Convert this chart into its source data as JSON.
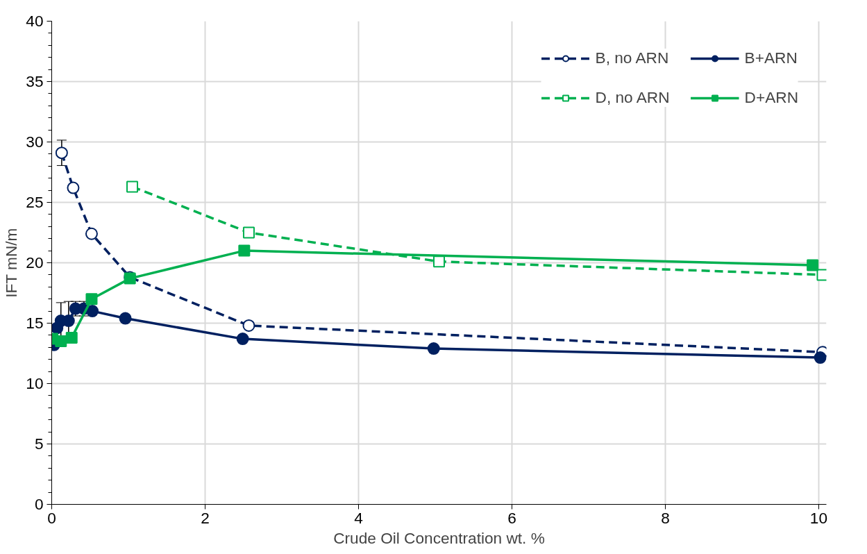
{
  "chart_data": {
    "type": "line",
    "xlabel": "Crude Oil Concentration wt. %",
    "ylabel": "IFT mN/m",
    "xlim": [
      0,
      10.1
    ],
    "ylim": [
      0,
      40
    ],
    "xticks": [
      0,
      2,
      4,
      6,
      8,
      10
    ],
    "yticks": [
      0,
      5,
      10,
      15,
      20,
      25,
      30,
      35,
      40
    ],
    "grid": true,
    "legend": "top right",
    "series": [
      {
        "name": "B, no ARN",
        "color": "#002060",
        "line_style": "dashed",
        "marker": "circle",
        "x": [
          0.13,
          0.28,
          0.52,
          1.02,
          2.57,
          10.05
        ],
        "values": [
          29.1,
          26.2,
          22.4,
          18.8,
          14.8,
          12.6
        ],
        "errors": [
          1.05,
          null,
          null,
          null,
          null,
          null
        ]
      },
      {
        "name": "D, no ARN",
        "color": "#00b050",
        "line_style": "dashed",
        "marker": "square",
        "x": [
          1.05,
          2.57,
          5.05,
          10.05
        ],
        "values": [
          26.3,
          22.5,
          20.1,
          19.0
        ]
      },
      {
        "name": "B+ARN",
        "color": "#002060",
        "line_style": "solid",
        "marker": "circle",
        "x": [
          0.03,
          0.07,
          0.12,
          0.22,
          0.31,
          0.42,
          0.53,
          0.96,
          2.49,
          4.98,
          10.02
        ],
        "values": [
          13.2,
          14.6,
          15.2,
          15.2,
          16.2,
          16.2,
          16.0,
          15.4,
          13.7,
          12.9,
          12.15
        ],
        "errors": [
          null,
          null,
          1.5,
          1.6,
          0.6,
          0.6,
          null,
          null,
          null,
          null,
          null
        ]
      },
      {
        "name": "D+ARN",
        "color": "#00b050",
        "line_style": "solid",
        "marker": "square",
        "x": [
          0.01,
          0.12,
          0.26,
          0.52,
          1.02,
          2.51,
          9.92
        ],
        "values": [
          13.7,
          13.5,
          13.8,
          17.0,
          18.7,
          21.0,
          19.8
        ]
      }
    ]
  }
}
